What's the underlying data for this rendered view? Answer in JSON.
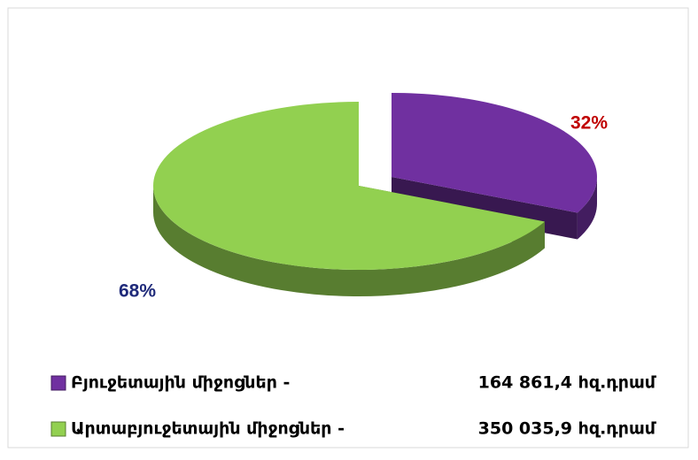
{
  "chart_data": {
    "type": "pie",
    "categories": [
      "Բյուջետային միջոցներ -",
      "Արտաբյուջետային միջոցներ -"
    ],
    "values": [
      32,
      68
    ],
    "value_labels": [
      "32%",
      "68%"
    ],
    "colors": [
      "#7030a0",
      "#92d050"
    ],
    "amounts": [
      164861.4,
      350035.9
    ],
    "amount_labels": [
      "164 861,4 հզ.դրամ",
      "350 035,9 հզ.դրամ"
    ]
  }
}
